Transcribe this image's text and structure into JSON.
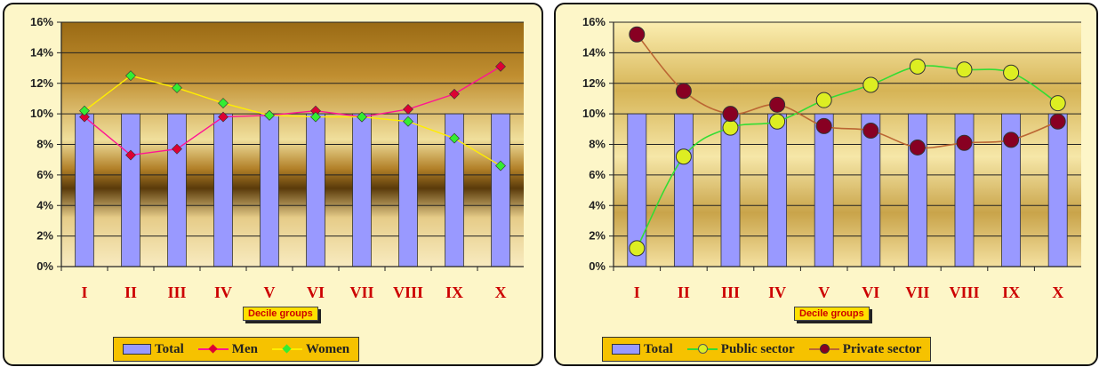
{
  "chart_data": [
    {
      "type": "bar",
      "categories": [
        "I",
        "II",
        "III",
        "IV",
        "V",
        "VI",
        "VII",
        "VIII",
        "IX",
        "X"
      ],
      "xlabel": "Decile groups",
      "ylim": [
        0,
        16
      ],
      "y_ticks": [
        "0%",
        "2%",
        "4%",
        "6%",
        "8%",
        "10%",
        "12%",
        "14%",
        "16%"
      ],
      "grid": true,
      "legend_position": "bottom",
      "series": [
        {
          "name": "Total",
          "kind": "bar",
          "color": "#9999ff",
          "values": [
            10,
            10,
            10,
            10,
            10,
            10,
            10,
            10,
            10,
            10
          ]
        },
        {
          "name": "Men",
          "kind": "line",
          "color": "#ff1493",
          "marker": "diamond",
          "marker_color": "#dd0033",
          "values": [
            9.8,
            7.3,
            7.7,
            9.8,
            9.9,
            10.2,
            9.8,
            10.3,
            11.3,
            13.1
          ]
        },
        {
          "name": "Women",
          "kind": "line",
          "color": "#ffee00",
          "marker": "diamond",
          "marker_color": "#33ee33",
          "values": [
            10.2,
            12.5,
            11.7,
            10.7,
            9.9,
            9.8,
            9.8,
            9.5,
            8.4,
            6.6
          ]
        }
      ]
    },
    {
      "type": "bar",
      "categories": [
        "I",
        "II",
        "III",
        "IV",
        "V",
        "VI",
        "VII",
        "VIII",
        "IX",
        "X"
      ],
      "xlabel": "Decile groups",
      "ylim": [
        0,
        16
      ],
      "y_ticks": [
        "0%",
        "2%",
        "4%",
        "6%",
        "8%",
        "10%",
        "12%",
        "14%",
        "16%"
      ],
      "grid": true,
      "legend_position": "bottom",
      "series": [
        {
          "name": "Total",
          "kind": "bar",
          "color": "#9999ff",
          "values": [
            10,
            10,
            10,
            10,
            10,
            10,
            10,
            10,
            10,
            10
          ]
        },
        {
          "name": "Public sector",
          "kind": "line",
          "color": "#33dd33",
          "marker": "circle",
          "marker_color": "#ddee22",
          "values": [
            1.2,
            7.2,
            9.1,
            9.5,
            10.9,
            11.9,
            13.1,
            12.9,
            12.7,
            10.7
          ]
        },
        {
          "name": "Private sector",
          "kind": "line",
          "color": "#bb6633",
          "marker": "circle",
          "marker_color": "#880022",
          "values": [
            15.2,
            11.5,
            10.0,
            10.6,
            9.2,
            8.9,
            7.8,
            8.1,
            8.3,
            9.5
          ]
        }
      ]
    }
  ]
}
